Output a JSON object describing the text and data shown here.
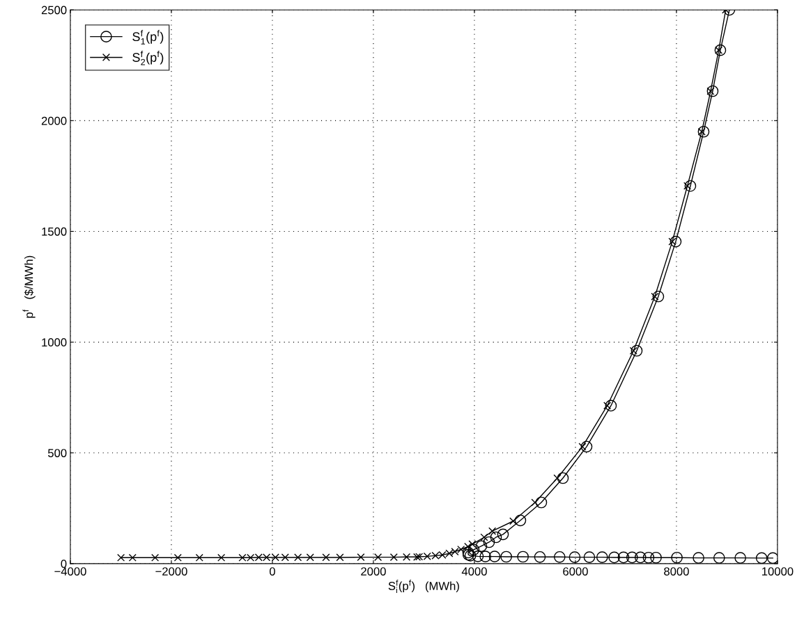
{
  "chart_data": {
    "type": "line",
    "xlabel": "S$^{f}$$_{i}$(p$^{f}$)   (MWh)",
    "ylabel": "p$^{f}$   ($/MWh)",
    "xlim": [
      -4000,
      10000
    ],
    "xticks": [
      -4000,
      -2000,
      0,
      2000,
      4000,
      6000,
      8000,
      10000
    ],
    "ylim": [
      0,
      2500
    ],
    "yticks": [
      0,
      500,
      1000,
      1500,
      2000,
      2500
    ],
    "grid": true,
    "legend": "top left",
    "line_style": "solid",
    "series": [
      {
        "name": "S$^{f}$$_{1}$(p$^{f}$)",
        "color": "#000000",
        "marker": "circle",
        "x": [
          9908,
          9687,
          9265,
          8846,
          8437,
          8009,
          7595,
          7448,
          7287,
          7122,
          6952,
          6768,
          6529,
          6276,
          5986,
          5687,
          5297,
          4961,
          4630,
          4400,
          4217,
          4069,
          3920,
          3880,
          3876,
          3986,
          4138,
          4290,
          4428,
          4566,
          4910,
          5324,
          5752,
          6221,
          6703,
          7214,
          7641,
          7986,
          8276,
          8538,
          8717,
          8869,
          9048
        ],
        "values": [
          25,
          25,
          26,
          26,
          26,
          27,
          27,
          27,
          28,
          28,
          28,
          28,
          29,
          29,
          29,
          30,
          30,
          31,
          31,
          32,
          32,
          33,
          36,
          40,
          50,
          63,
          79,
          97,
          119,
          132,
          195,
          276,
          386,
          528,
          713,
          961,
          1206,
          1454,
          1705,
          1950,
          2133,
          2318,
          2500
        ]
      },
      {
        "name": "S$^{f}$$_{2}$(p$^{f}$)",
        "color": "#000000",
        "marker": "cross",
        "x": [
          -2998,
          -2768,
          -2322,
          -1871,
          -1444,
          -1011,
          -593,
          -432,
          -271,
          -115,
          60,
          253,
          506,
          749,
          1062,
          1338,
          1752,
          2092,
          2405,
          2657,
          2864,
          2906,
          3066,
          3228,
          3366,
          3503,
          3614,
          3734,
          3872,
          3959,
          4193,
          4354,
          4768,
          5200,
          5641,
          6138,
          6630,
          7149,
          7572,
          7917,
          8216,
          8501,
          8676,
          8837,
          8975
        ],
        "values": [
          27,
          27,
          27,
          27,
          27,
          27,
          27,
          27,
          28,
          28,
          28,
          28,
          28,
          28,
          28,
          28,
          29,
          29,
          29,
          30,
          30,
          31,
          33,
          36,
          39,
          46,
          54,
          64,
          77,
          88,
          119,
          147,
          192,
          276,
          386,
          528,
          713,
          961,
          1206,
          1454,
          1705,
          1950,
          2133,
          2318,
          2500
        ]
      }
    ]
  }
}
